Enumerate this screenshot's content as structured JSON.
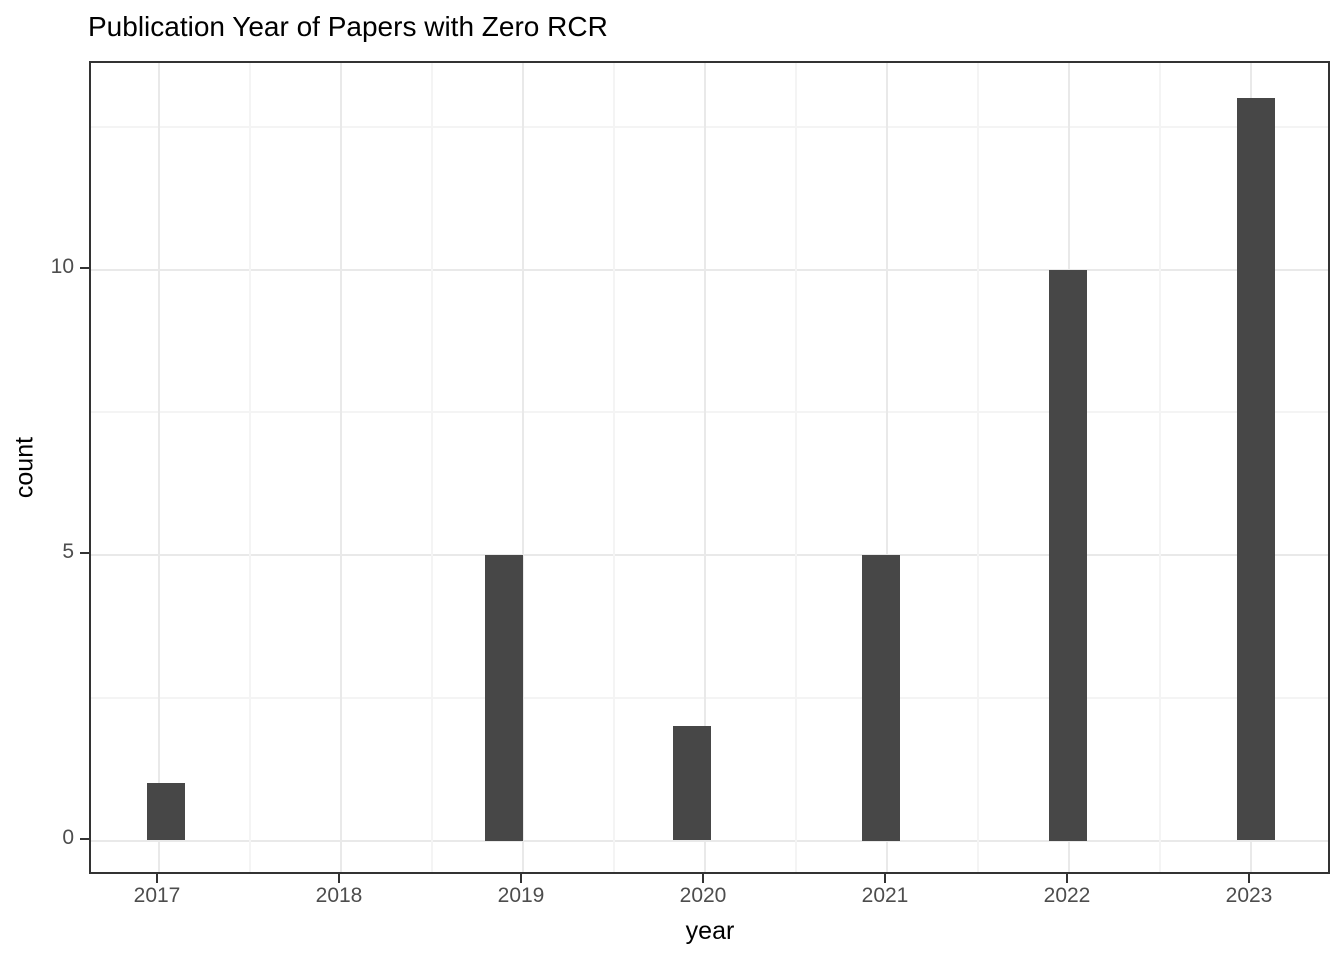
{
  "chart_data": {
    "type": "bar",
    "title": "Publication Year of Papers with Zero RCR",
    "xlabel": "year",
    "ylabel": "count",
    "categories": [
      "2017",
      "2018",
      "2019",
      "2020",
      "2021",
      "2022",
      "2023"
    ],
    "values": [
      1,
      0,
      5,
      2,
      5,
      10,
      13
    ],
    "x_tick_labels": [
      "2017",
      "2018",
      "2019",
      "2020",
      "2021",
      "2022",
      "2023"
    ],
    "y_tick_labels": [
      "0",
      "5",
      "10"
    ],
    "y_major_gridlines": [
      0,
      5,
      10
    ],
    "y_minor_gridlines": [
      2.5,
      7.5,
      12.5
    ],
    "x_minor_gridlines": [
      2017.5,
      2018.5,
      2019.5,
      2020.5,
      2021.5,
      2022.5
    ],
    "ylim": [
      -0.65,
      13.65
    ],
    "grid": "major+minor",
    "legend": "none",
    "colors": {
      "bar_fill": "#474747",
      "panel_border": "#333333",
      "grid_major": "#e9e9e9",
      "grid_minor": "#f4f4f4",
      "axis_text": "#4d4d4d",
      "title_text": "#000000",
      "background": "#ffffff"
    }
  }
}
